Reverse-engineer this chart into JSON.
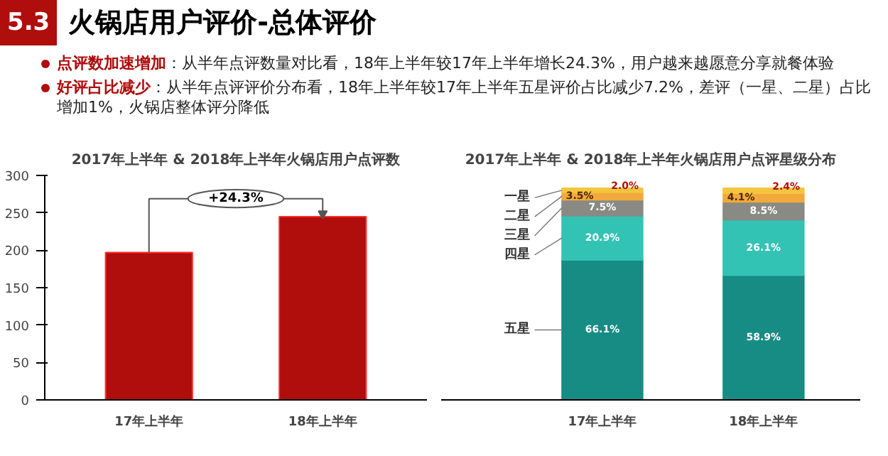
{
  "chart_data": [
    {
      "type": "other",
      "title": "火锅店用户评价-总体评价",
      "annotations": [
        "5.3",
        "点评数加速增加",
        "：从半年点评数量对比看，18年上半年较17年上半年增长24.3%，用户越来越愿意分享就餐体验",
        "好评占比减少",
        "：从半年点评评价分布看，18年上半年较17年上半年五星评价占比减少7.2%，差评（一星、二星）占比增加1%，火锅店整体评分降低"
      ]
    },
    {
      "type": "bar",
      "title": "2017年上半年 & 2018年上半年火锅店用户点评数",
      "categories": [
        "17年上半年",
        "18年上半年"
      ],
      "values": [
        197,
        245
      ],
      "color": "#b00d0d",
      "ylim": [
        0,
        300
      ],
      "yticks": [
        0,
        50,
        100,
        150,
        200,
        250,
        300
      ],
      "grid": false,
      "annotations": [
        "+24.3%"
      ]
    },
    {
      "type": "bar",
      "title": "2017年上半年 & 2018年上半年火锅店用户点评星级分布",
      "categories": [
        "17年上半年",
        "18年上半年"
      ],
      "stacked": true,
      "series": [
        {
          "name": "五星",
          "color": "#178c84",
          "values": [
            66.1,
            58.9
          ],
          "value_labels": [
            "66.1%",
            "58.9%"
          ]
        },
        {
          "name": "四星",
          "color": "#33c3b5",
          "values": [
            20.9,
            26.1
          ],
          "value_labels": [
            "20.9%",
            "26.1%"
          ]
        },
        {
          "name": "三星",
          "color": "#8a8a84",
          "values": [
            7.5,
            8.5
          ],
          "value_labels": [
            "7.5%",
            "8.5%"
          ]
        },
        {
          "name": "二星",
          "color": "#f2a93b",
          "values": [
            3.5,
            4.1
          ],
          "value_labels": [
            "3.5%",
            "4.1%"
          ]
        },
        {
          "name": "一星",
          "color": "#f6c540",
          "values": [
            2.0,
            2.4
          ],
          "value_labels": [
            "2.0%",
            "2.4%"
          ]
        }
      ]
    }
  ]
}
